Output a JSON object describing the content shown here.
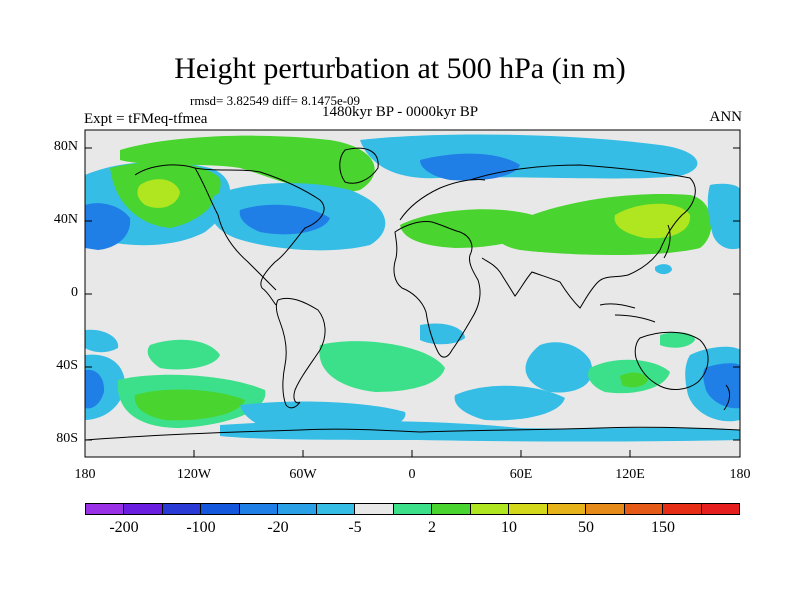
{
  "title": "Height perturbation at 500 hPa (in m)",
  "stats": "rmsd= 3.82549 diff= 8.1475e-09",
  "expt": "Expt = tFMeq-tfmea",
  "period": "1480kyr BP - 0000kyr BP",
  "season": "ANN",
  "map": {
    "projection": "cylindrical equidistant",
    "lon_range": [
      -180,
      180
    ],
    "lat_range": [
      -90,
      90
    ],
    "y_ticks": [
      "80N",
      "40N",
      "0",
      "40S",
      "80S"
    ],
    "x_ticks": [
      "180",
      "120W",
      "60W",
      "0",
      "60E",
      "120E",
      "180"
    ],
    "field": "500 hPa geopotential height anomaly",
    "units": "m"
  },
  "colorbar": {
    "colors": [
      "#9b31e6",
      "#6a1fe0",
      "#2a3ad4",
      "#1557dc",
      "#1f7fe6",
      "#2aa0e6",
      "#35bde6",
      "#e8e8e8",
      "#3de08a",
      "#49d42f",
      "#b0e61f",
      "#d3d91a",
      "#e6b41a",
      "#e68a1a",
      "#e65a18",
      "#e62d15",
      "#e61e1e"
    ],
    "labels": [
      "-200",
      "-100",
      "-20",
      "-5",
      "2",
      "10",
      "50",
      "150"
    ]
  }
}
